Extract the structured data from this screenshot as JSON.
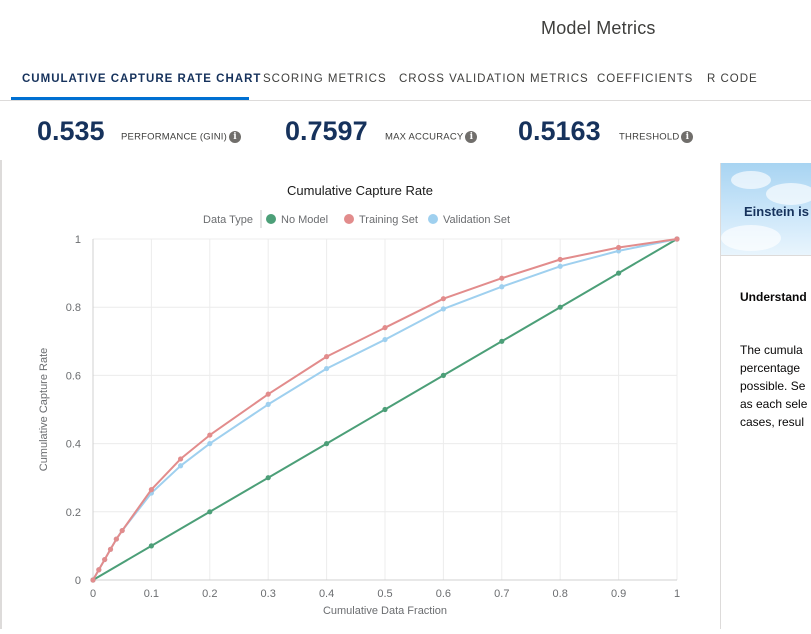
{
  "header": {
    "title": "Model Metrics"
  },
  "tabs": [
    {
      "label": "CUMULATIVE CAPTURE RATE CHART",
      "active": true
    },
    {
      "label": "SCORING METRICS",
      "active": false
    },
    {
      "label": "CROSS VALIDATION METRICS",
      "active": false
    },
    {
      "label": "COEFFICIENTS",
      "active": false
    },
    {
      "label": "R CODE",
      "active": false
    }
  ],
  "metrics": [
    {
      "value": "0.535",
      "label": "PERFORMANCE (GINI)",
      "icon": "info-icon"
    },
    {
      "value": "0.7597",
      "label": "MAX ACCURACY",
      "icon": "info-icon"
    },
    {
      "value": "0.5163",
      "label": "THRESHOLD",
      "icon": "info-icon"
    }
  ],
  "side_panel": {
    "banner_text": "Einstein is",
    "sub_heading": "Understand",
    "body_lines": [
      "The cumula",
      "percentage",
      "possible. Se",
      "as each sele",
      "cases, resul"
    ]
  },
  "colors": {
    "no_model": "#4c9f78",
    "training": "#e28c8c",
    "validation": "#9fd0ef",
    "accent": "#0070d2",
    "text_dark": "#16325c"
  },
  "chart_data": {
    "type": "line",
    "title": "Cumulative Capture Rate",
    "xlabel": "Cumulative Data Fraction",
    "ylabel": "Cumulative Capture Rate",
    "legend_title": "Data Type",
    "legend_position": "top",
    "xlim": [
      0,
      1
    ],
    "ylim": [
      0,
      1
    ],
    "x_ticks": [
      "0",
      "0.1",
      "0.2",
      "0.3",
      "0.4",
      "0.5",
      "0.6",
      "0.7",
      "0.8",
      "0.9",
      "1"
    ],
    "y_ticks": [
      "0",
      "0.2",
      "0.4",
      "0.6",
      "0.8",
      "1"
    ],
    "grid": true,
    "series": [
      {
        "name": "No Model",
        "color": "#4c9f78",
        "x": [
          0,
          0.1,
          0.2,
          0.3,
          0.4,
          0.5,
          0.6,
          0.7,
          0.8,
          0.9,
          1.0
        ],
        "y": [
          0,
          0.1,
          0.2,
          0.3,
          0.4,
          0.5,
          0.6,
          0.7,
          0.8,
          0.9,
          1.0
        ]
      },
      {
        "name": "Training Set",
        "color": "#e28c8c",
        "x": [
          0,
          0.01,
          0.02,
          0.03,
          0.04,
          0.05,
          0.1,
          0.15,
          0.2,
          0.3,
          0.4,
          0.5,
          0.6,
          0.7,
          0.8,
          0.9,
          1.0
        ],
        "y": [
          0,
          0.03,
          0.06,
          0.09,
          0.12,
          0.145,
          0.265,
          0.355,
          0.425,
          0.545,
          0.655,
          0.74,
          0.825,
          0.885,
          0.94,
          0.975,
          1.0
        ]
      },
      {
        "name": "Validation Set",
        "color": "#9fd0ef",
        "x": [
          0,
          0.01,
          0.02,
          0.03,
          0.04,
          0.05,
          0.1,
          0.15,
          0.2,
          0.3,
          0.4,
          0.5,
          0.6,
          0.7,
          0.8,
          0.9,
          1.0
        ],
        "y": [
          0,
          0.03,
          0.06,
          0.09,
          0.12,
          0.145,
          0.255,
          0.335,
          0.4,
          0.515,
          0.62,
          0.705,
          0.795,
          0.86,
          0.92,
          0.965,
          1.0
        ]
      }
    ]
  }
}
